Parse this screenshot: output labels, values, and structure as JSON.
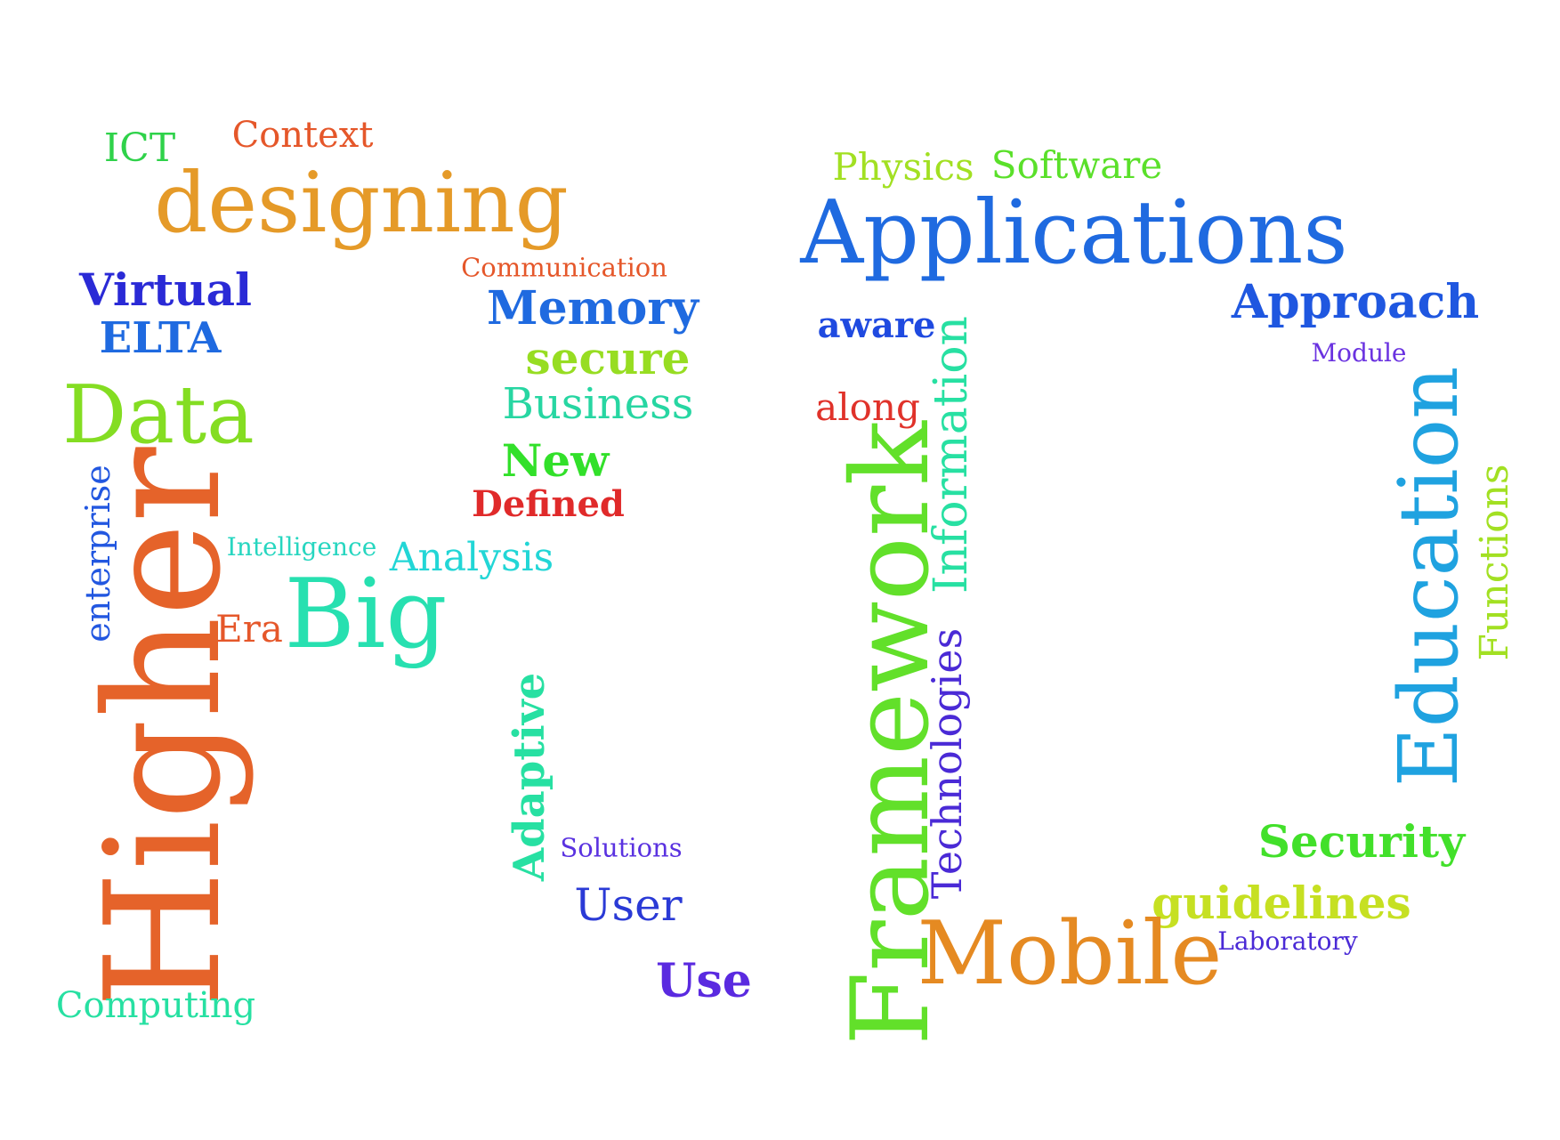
{
  "word_cloud": {
    "words": [
      {
        "key": "ict",
        "text": "ICT",
        "color": "#2fd24a"
      },
      {
        "key": "context",
        "text": "Context",
        "color": "#e5572a"
      },
      {
        "key": "designing",
        "text": "designing",
        "color": "#e59a28"
      },
      {
        "key": "communication",
        "text": "Communication",
        "color": "#e5572a"
      },
      {
        "key": "virtual",
        "text": "Virtual",
        "color": "#2a2ad6"
      },
      {
        "key": "elta",
        "text": "ELTA",
        "color": "#1f6ae0"
      },
      {
        "key": "memory",
        "text": "Memory",
        "color": "#1f6ae0"
      },
      {
        "key": "secure",
        "text": "secure",
        "color": "#97dd22"
      },
      {
        "key": "business",
        "text": "Business",
        "color": "#27d6a2"
      },
      {
        "key": "data",
        "text": "Data",
        "color": "#84dd22"
      },
      {
        "key": "new",
        "text": "New",
        "color": "#32e02a"
      },
      {
        "key": "defined",
        "text": "Defined",
        "color": "#e02a2a"
      },
      {
        "key": "intelligence",
        "text": "Intelligence",
        "color": "#27d6c0"
      },
      {
        "key": "analysis",
        "text": "Analysis",
        "color": "#22d6d6"
      },
      {
        "key": "enterprise",
        "text": "enterprise",
        "color": "#2257e0"
      },
      {
        "key": "era",
        "text": "Era",
        "color": "#e5572a"
      },
      {
        "key": "big",
        "text": "Big",
        "color": "#27e0b0"
      },
      {
        "key": "higher",
        "text": "Higher",
        "color": "#e5632a"
      },
      {
        "key": "adaptive",
        "text": "Adaptive",
        "color": "#27e0a2"
      },
      {
        "key": "solutions",
        "text": "Solutions",
        "color": "#5a32e0"
      },
      {
        "key": "user",
        "text": "User",
        "color": "#2a3ad6"
      },
      {
        "key": "use",
        "text": "Use",
        "color": "#5a2ae0"
      },
      {
        "key": "computing",
        "text": "Computing",
        "color": "#27e0a2"
      },
      {
        "key": "physics",
        "text": "Physics",
        "color": "#a2e022"
      },
      {
        "key": "software",
        "text": "Software",
        "color": "#5ae02a"
      },
      {
        "key": "applications",
        "text": "Applications",
        "color": "#1f6ae0"
      },
      {
        "key": "approach",
        "text": "Approach",
        "color": "#1f57e0"
      },
      {
        "key": "aware",
        "text": "aware",
        "color": "#1f4ae0"
      },
      {
        "key": "module",
        "text": "Module",
        "color": "#6a32e0"
      },
      {
        "key": "along",
        "text": "along",
        "color": "#e0322a"
      },
      {
        "key": "information",
        "text": "Information",
        "color": "#27e0a2"
      },
      {
        "key": "framework",
        "text": "Framework",
        "color": "#62e02a"
      },
      {
        "key": "technologies",
        "text": "Technologies",
        "color": "#4a2ad6"
      },
      {
        "key": "education",
        "text": "Education",
        "color": "#1fa2e0"
      },
      {
        "key": "functions",
        "text": "Functions",
        "color": "#a2e022"
      },
      {
        "key": "security",
        "text": "Security",
        "color": "#42e02a"
      },
      {
        "key": "guidelines",
        "text": "guidelines",
        "color": "#c6e022"
      },
      {
        "key": "laboratory",
        "text": "Laboratory",
        "color": "#4a2ad6"
      },
      {
        "key": "mobile",
        "text": "Mobile",
        "color": "#e58a22"
      }
    ]
  }
}
